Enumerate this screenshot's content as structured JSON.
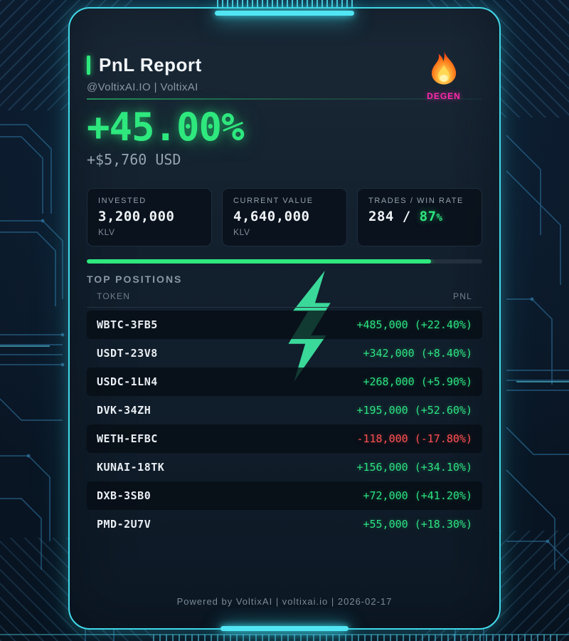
{
  "header": {
    "title": "PnL Report",
    "subtitle": "@VoltixAI.IO | VoltixAI",
    "badge": {
      "icon": "fire-emoji",
      "label": "DEGEN"
    }
  },
  "summary": {
    "pnl_percent": "+45.00%",
    "pnl_usd": "+$5,760 USD"
  },
  "stats": [
    {
      "label": "INVESTED",
      "value": "3,200,000",
      "unit": "KLV"
    },
    {
      "label": "CURRENT VALUE",
      "value": "4,640,000",
      "unit": "KLV"
    },
    {
      "label": "TRADES / WIN RATE",
      "trades": "284",
      "sep": " / ",
      "win": "87",
      "pct": "%"
    }
  ],
  "win_rate_bar": {
    "percent": 87
  },
  "positions": {
    "heading": "TOP POSITIONS",
    "columns": {
      "token": "TOKEN",
      "pnl": "PNL"
    },
    "rows": [
      {
        "token": "WBTC-3FB5",
        "pnl": "+485,000 (+22.40%)"
      },
      {
        "token": "USDT-23V8",
        "pnl": "+342,000 (+8.40%)"
      },
      {
        "token": "USDC-1LN4",
        "pnl": "+268,000 (+5.90%)"
      },
      {
        "token": "DVK-34ZH",
        "pnl": "+195,000 (+52.60%)"
      },
      {
        "token": "WETH-EFBC",
        "pnl": "-118,000 (-17.80%)"
      },
      {
        "token": "KUNAI-18TK",
        "pnl": "+156,000 (+34.10%)"
      },
      {
        "token": "DXB-3SB0",
        "pnl": "+72,000 (+41.20%)"
      },
      {
        "token": "PMD-2U7V",
        "pnl": "+55,000 (+18.30%)"
      }
    ]
  },
  "footer": {
    "text": "Powered by VoltixAI | voltixai.io | 2026-02-17"
  },
  "colors": {
    "accent_green": "#2ee87e",
    "accent_cyan": "#41d9e9",
    "negative_red": "#ff5050",
    "badge_magenta": "#ff29ad",
    "bolt_mint": "#3ee9a4"
  }
}
